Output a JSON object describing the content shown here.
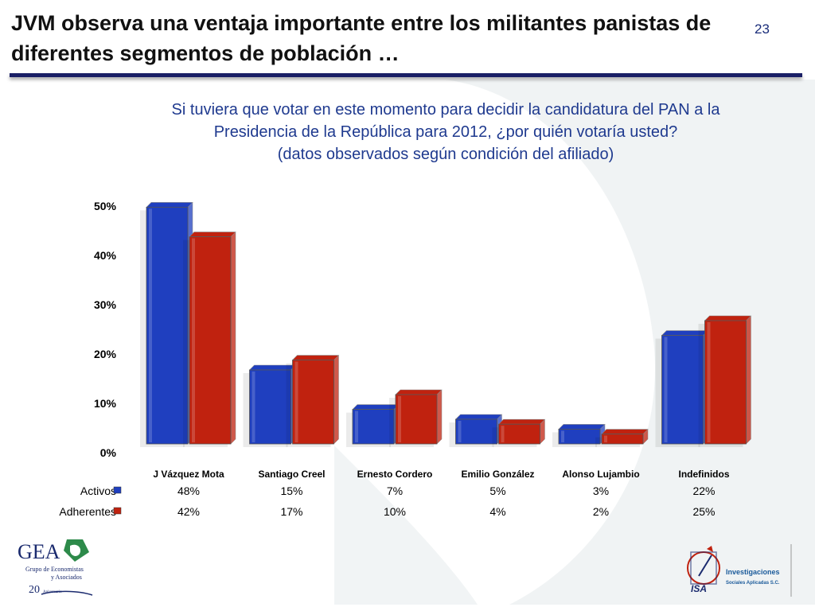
{
  "slide": {
    "title": "JVM observa una ventaja importante entre los militantes panistas de diferentes segmentos de población …",
    "number": "23",
    "question_lines": [
      "Si tuviera que votar en este momento para decidir la candidatura del PAN a la",
      "Presidencia de la República para 2012, ¿por quién votaría usted?",
      "(datos observados según condición del afiliado)"
    ]
  },
  "chart_data": {
    "type": "bar",
    "categories": [
      "J Vázquez Mota",
      "Santiago Creel",
      "Ernesto Cordero",
      "Emilio González",
      "Alonso Lujambio",
      "Indefinidos"
    ],
    "series": [
      {
        "name": "Activos",
        "values": [
          48,
          15,
          7,
          5,
          3,
          22
        ],
        "labels": [
          "48%",
          "15%",
          "7%",
          "5%",
          "3%",
          "22%"
        ],
        "color": "#1f3fbf"
      },
      {
        "name": "Adherentes",
        "values": [
          42,
          17,
          10,
          4,
          2,
          25
        ],
        "labels": [
          "42%",
          "17%",
          "10%",
          "4%",
          "2%",
          "25%"
        ],
        "color": "#c0220f"
      }
    ],
    "yticks": [
      "0%",
      "10%",
      "20%",
      "30%",
      "40%",
      "50%"
    ],
    "ylim": [
      0,
      50
    ],
    "grid": false,
    "legend": "data table below chart"
  },
  "logos": {
    "left": {
      "name": "GEA",
      "lines": [
        "Grupo de Economistas",
        "y Asociados"
      ],
      "anniversary": "20",
      "anniversary_word": "Aniversario"
    },
    "right": {
      "name": "ISA",
      "lines": [
        "Investigaciones",
        "Sociales Aplicadas S.C."
      ]
    }
  },
  "colors": {
    "title_rule": "#1a1f66",
    "question_text": "#1f3a8f",
    "activos": "#1f3fbf",
    "adherentes": "#c0220f"
  }
}
